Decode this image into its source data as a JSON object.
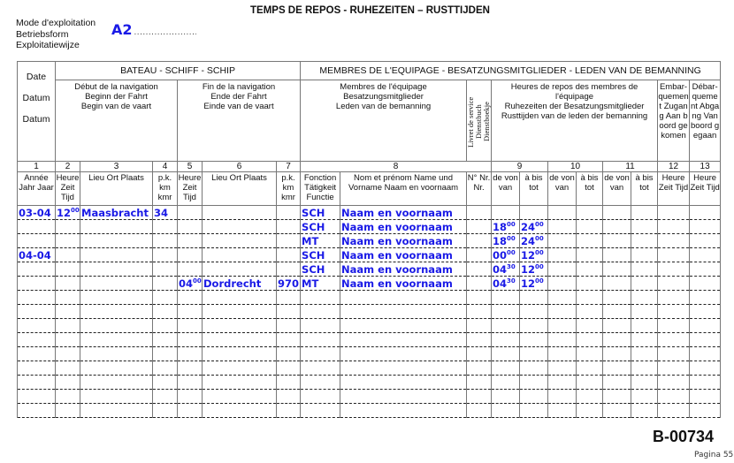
{
  "title": "TEMPS DE REPOS - RUHEZEITEN – RUSTTIJDEN",
  "mode": {
    "label_fr": "Mode d'exploitation",
    "label_de": "Betriebsform",
    "label_nl": "Exploitatiewijze",
    "dots": "...........................................",
    "value": "A2"
  },
  "header": {
    "date": [
      "Date",
      "Datum",
      "Datum"
    ],
    "bateau": "BATEAU - SCHIFF - SCHIP",
    "membres": "MEMBRES DE L'EQUIPAGE - BESATZUNGSMITGLIEDER - LEDEN VAN DE BEMANNING",
    "debut": [
      "Début de la navigation",
      "Beginn der Fahrt",
      "Begin van de vaart"
    ],
    "fin": [
      "Fin de la navigation",
      "Ende der Fahrt",
      "Einde van de vaart"
    ],
    "membres_sub": [
      "Membres de l'équipage",
      "Besatzungsmitglieder",
      "Leden van de bemanning"
    ],
    "livret": [
      "Livret de service",
      "Dienstbuch",
      "Dienstboekje"
    ],
    "repos": [
      "Heures de repos des membres de l'équipage",
      "Ruhezeiten der Besatzungsmitglieder",
      "Rusttijden van de leden der bemanning"
    ],
    "embarquement": "Embar-quement Zugang Aan boord gekomen",
    "debarquement": "Débar-quement Abgang Van boord gegaan",
    "numbers": [
      "1",
      "2",
      "3",
      "4",
      "5",
      "6",
      "7",
      "8",
      "9",
      "10",
      "11",
      "12",
      "13"
    ],
    "labels": [
      "Année Jahr Jaar",
      "Heure Zeit Tijd",
      "Lieu Ort Plaats",
      "p.k. km kmr",
      "Heure Zeit Tijd",
      "Lieu Ort Plaats",
      "p.k. km kmr",
      "Fonction Tätigkeit Functie",
      "Nom et prénom Name und Vorname Naam en voornaam",
      "N° Nr. Nr.",
      "de von van",
      "à bis tot",
      "de von van",
      "à bis tot",
      "de von van",
      "à bis tot",
      "Heure Zeit Tijd",
      "Heure Zeit Tijd"
    ]
  },
  "rows": [
    [
      "03-04",
      {
        "h": "12",
        "m": "00"
      },
      "Maasbracht",
      "34",
      "",
      "",
      "",
      "SCH",
      "Naam en voornaam",
      "",
      "",
      "",
      "",
      "",
      "",
      "",
      "",
      ""
    ],
    [
      "",
      "",
      "",
      "",
      "",
      "",
      "",
      "SCH",
      "Naam en voornaam",
      "",
      {
        "h": "18",
        "m": "00"
      },
      {
        "h": "24",
        "m": "00"
      },
      "",
      "",
      "",
      "",
      "",
      ""
    ],
    [
      "",
      "",
      "",
      "",
      "",
      "",
      "",
      "MT",
      "Naam en voornaam",
      "",
      {
        "h": "18",
        "m": "00"
      },
      {
        "h": "24",
        "m": "00"
      },
      "",
      "",
      "",
      "",
      "",
      ""
    ],
    [
      "04-04",
      "",
      "",
      "",
      "",
      "",
      "",
      "SCH",
      "Naam en voornaam",
      "",
      {
        "h": "00",
        "m": "00"
      },
      {
        "h": "12",
        "m": "00"
      },
      "",
      "",
      "",
      "",
      "",
      ""
    ],
    [
      "",
      "",
      "",
      "",
      "",
      "",
      "",
      "SCH",
      "Naam en voornaam",
      "",
      {
        "h": "04",
        "m": "30"
      },
      {
        "h": "12",
        "m": "00"
      },
      "",
      "",
      "",
      "",
      "",
      ""
    ],
    [
      "",
      "",
      "",
      "",
      {
        "h": "04",
        "m": "00"
      },
      "Dordrecht",
      "970",
      "MT",
      "Naam en voornaam",
      "",
      {
        "h": "04",
        "m": "30"
      },
      {
        "h": "12",
        "m": "00"
      },
      "",
      "",
      "",
      "",
      "",
      ""
    ],
    [],
    [],
    [],
    [],
    [],
    [],
    [],
    [],
    []
  ],
  "form_code": "B-00734",
  "page": "Pagina 55",
  "colors": {
    "handwriting": "#1a1ae6",
    "grid": "#777777"
  }
}
